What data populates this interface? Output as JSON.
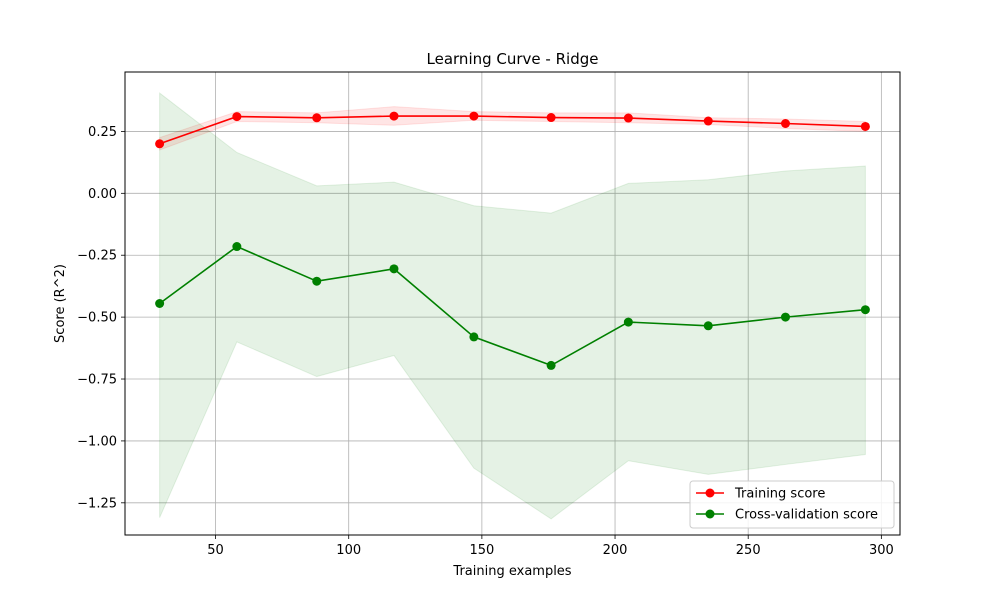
{
  "chart_data": {
    "type": "line",
    "title": "Learning Curve - Ridge",
    "xlabel": "Training examples",
    "ylabel": "Score (R^2)",
    "xlim": [
      16,
      307
    ],
    "ylim": [
      -1.38,
      0.49
    ],
    "xticks": [
      50,
      100,
      150,
      200,
      250,
      300
    ],
    "yticks": [
      0.25,
      0.0,
      -0.25,
      -0.5,
      -0.75,
      -1.0,
      -1.25
    ],
    "xtick_labels": [
      "50",
      "100",
      "150",
      "200",
      "250",
      "300"
    ],
    "ytick_labels": [
      "0.25",
      "0.00",
      "−0.25",
      "−0.50",
      "−0.75",
      "−1.00",
      "−1.25"
    ],
    "grid": true,
    "legend_position": "lower-right",
    "x": [
      29,
      58,
      88,
      117,
      147,
      176,
      205,
      235,
      264,
      294
    ],
    "series": [
      {
        "name": "Training score",
        "color": "#ff0000",
        "band_color": "#ff0000",
        "values": [
          0.2,
          0.31,
          0.305,
          0.312,
          0.312,
          0.306,
          0.304,
          0.292,
          0.282,
          0.27
        ],
        "upper": [
          0.225,
          0.33,
          0.325,
          0.35,
          0.33,
          0.325,
          0.325,
          0.305,
          0.3,
          0.29
        ],
        "lower": [
          0.175,
          0.29,
          0.285,
          0.275,
          0.295,
          0.29,
          0.285,
          0.278,
          0.262,
          0.25
        ]
      },
      {
        "name": "Cross-validation score",
        "color": "#008000",
        "band_color": "#008000",
        "values": [
          -0.445,
          -0.215,
          -0.355,
          -0.305,
          -0.58,
          -0.695,
          -0.52,
          -0.535,
          -0.5,
          -0.47
        ],
        "upper": [
          0.405,
          0.165,
          0.03,
          0.045,
          -0.05,
          -0.08,
          0.04,
          0.055,
          0.09,
          0.11
        ],
        "lower": [
          -1.31,
          -0.6,
          -0.74,
          -0.655,
          -1.11,
          -1.315,
          -1.08,
          -1.135,
          -1.095,
          -1.055
        ]
      }
    ]
  }
}
